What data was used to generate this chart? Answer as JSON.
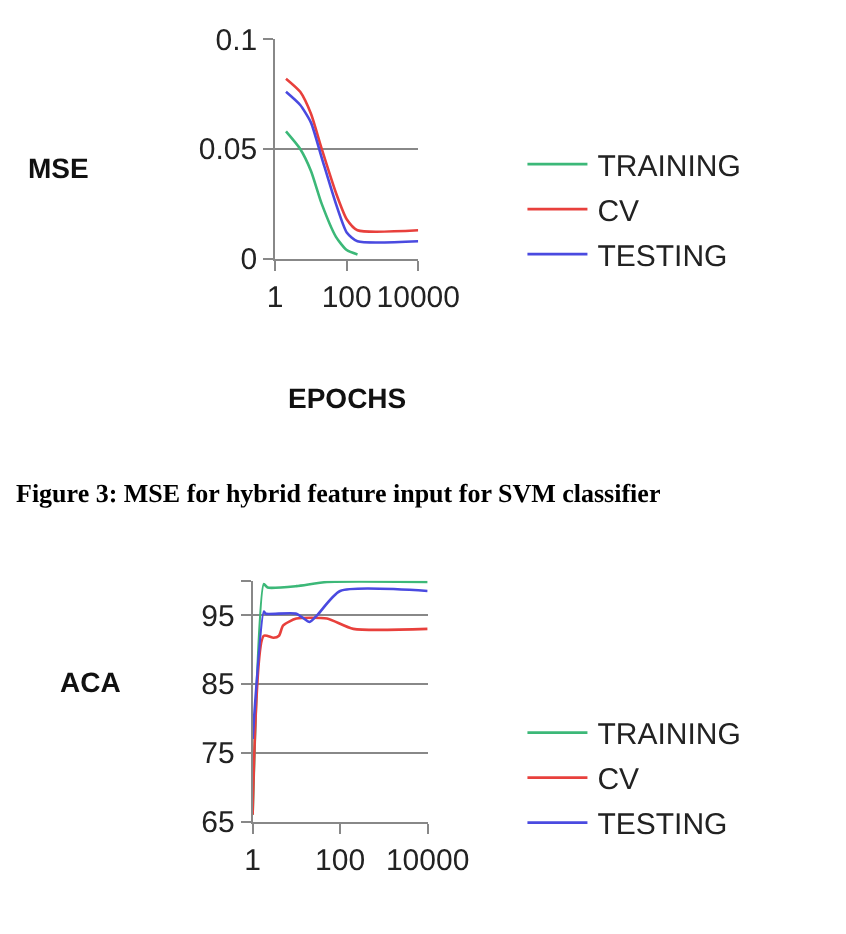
{
  "chart_data": [
    {
      "type": "line",
      "xlabel": "EPOCHS",
      "ylabel": "MSE",
      "log": "x",
      "xlim": [
        1,
        10000
      ],
      "xticks": [
        1,
        100,
        10000
      ],
      "ylim": [
        0,
        0.1
      ],
      "yticks": [
        0,
        0.05,
        0.1
      ],
      "grid": "y",
      "legend": "right",
      "marker": "none",
      "line_style": "solid",
      "annotations": [
        "Figure 3: MSE for hybrid feature input for SVM classifier"
      ],
      "series": [
        {
          "name": "TRAINING",
          "color": "#3cb878",
          "x": [
            2,
            5,
            10,
            20,
            50,
            100,
            200
          ],
          "values": [
            0.058,
            0.05,
            0.04,
            0.025,
            0.01,
            0.004,
            0.002
          ]
        },
        {
          "name": "CV",
          "color": "#e8403c",
          "x": [
            2,
            5,
            10,
            20,
            50,
            100,
            200,
            10000
          ],
          "values": [
            0.082,
            0.076,
            0.066,
            0.05,
            0.03,
            0.018,
            0.013,
            0.013
          ]
        },
        {
          "name": "TESTING",
          "color": "#4a4ae0",
          "x": [
            2,
            5,
            10,
            20,
            50,
            100,
            200,
            10000
          ],
          "values": [
            0.076,
            0.07,
            0.062,
            0.046,
            0.025,
            0.012,
            0.008,
            0.008
          ]
        }
      ]
    },
    {
      "type": "line",
      "ylabel": "ACA",
      "log": "x",
      "xlim": [
        1,
        10000
      ],
      "xticks": [
        1,
        100,
        10000
      ],
      "ylim": [
        65,
        100
      ],
      "yticks": [
        65,
        75,
        85,
        95,
        {
          "value": 100,
          "label": null
        }
      ],
      "grid": "y",
      "legend": "right",
      "marker": "none",
      "line_style": "solid",
      "series": [
        {
          "name": "TRAINING",
          "color": "#3cb878",
          "x": [
            1,
            1.8,
            2.2,
            10,
            50,
            10000
          ],
          "values": [
            66,
            99.5,
            99,
            99.2,
            99.8,
            99.8
          ]
        },
        {
          "name": "CV",
          "color": "#e8403c",
          "x": [
            1,
            1.8,
            3,
            4,
            5,
            10,
            50,
            200,
            10000
          ],
          "values": [
            66,
            92,
            91.7,
            92,
            93.5,
            94.5,
            94.5,
            93,
            93
          ]
        },
        {
          "name": "TESTING",
          "color": "#4a4ae0",
          "x": [
            1,
            1.8,
            2,
            10,
            20,
            30,
            100,
            10000
          ],
          "values": [
            77,
            95.5,
            95.2,
            95.2,
            94,
            95,
            98.5,
            98.5
          ]
        }
      ]
    }
  ]
}
